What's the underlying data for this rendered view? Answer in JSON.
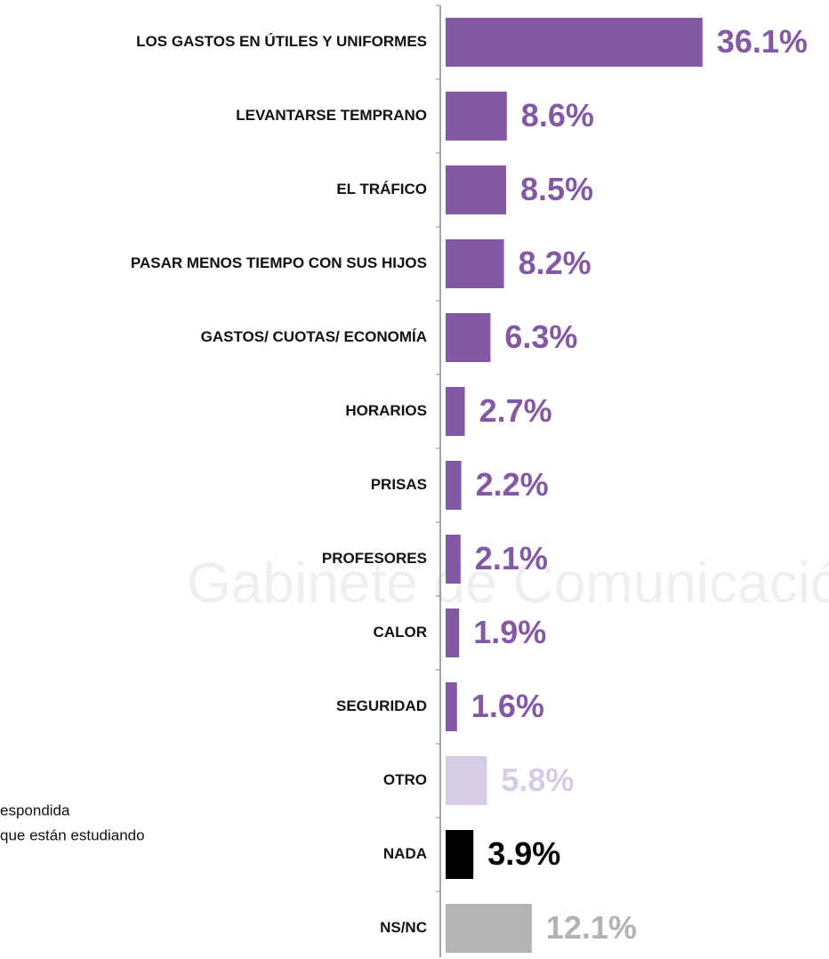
{
  "watermark": "Gabinete de  Comunicación  Estr",
  "notes": [
    "espondida",
    "que están estudiando"
  ],
  "chart_data": {
    "type": "barh",
    "categories": [
      "LOS GASTOS EN ÚTILES Y UNIFORMES",
      "LEVANTARSE TEMPRANO",
      "EL TRÁFICO",
      "PASAR MENOS TIEMPO CON SUS HIJOS",
      "GASTOS/ CUOTAS/ ECONOMÍA",
      "HORARIOS",
      "PRISAS",
      "PROFESORES",
      "CALOR",
      "SEGURIDAD",
      "OTRO",
      "NADA",
      "NS/NC"
    ],
    "values": [
      36.1,
      8.6,
      8.5,
      8.2,
      6.3,
      2.7,
      2.2,
      2.1,
      1.9,
      1.6,
      5.8,
      3.9,
      12.1
    ],
    "value_labels": [
      "36.1%",
      "8.6%",
      "8.5%",
      "8.2%",
      "6.3%",
      "2.7%",
      "2.2%",
      "2.1%",
      "1.9%",
      "1.6%",
      "5.8%",
      "3.9%",
      "12.1%"
    ],
    "colors": [
      "#8459a4",
      "#8459a4",
      "#8459a4",
      "#8459a4",
      "#8459a4",
      "#8459a4",
      "#8459a4",
      "#8459a4",
      "#8459a4",
      "#8459a4",
      "#d6cde4",
      "#000000",
      "#b3b3b3"
    ],
    "xlim": [
      0,
      40
    ]
  }
}
